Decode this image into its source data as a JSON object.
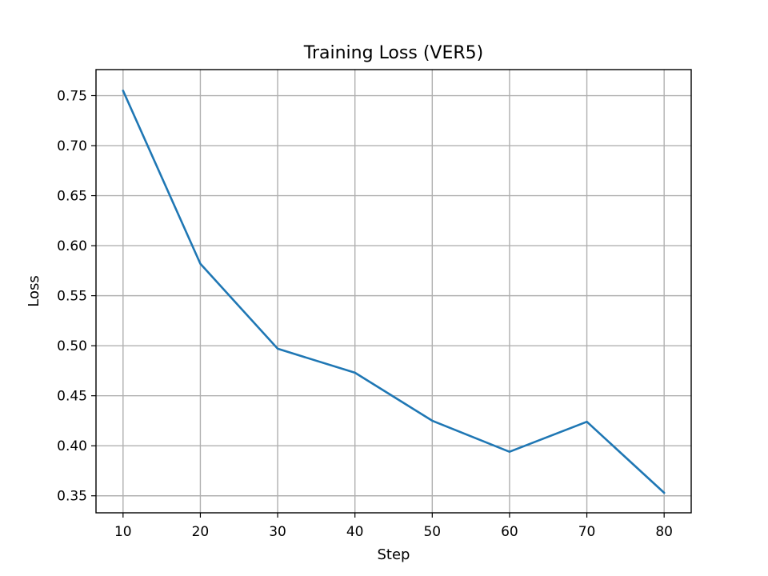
{
  "chart_data": {
    "type": "line",
    "title": "Training Loss (VER5)",
    "xlabel": "Step",
    "ylabel": "Loss",
    "x": [
      10,
      20,
      30,
      40,
      50,
      60,
      70,
      80
    ],
    "series": [
      {
        "values": [
          0.755,
          0.582,
          0.497,
          0.473,
          0.425,
          0.394,
          0.424,
          0.353
        ],
        "color": "#1f77b4"
      }
    ],
    "x_ticks": [
      10,
      20,
      30,
      40,
      50,
      60,
      70,
      80
    ],
    "y_ticks": [
      0.35,
      0.4,
      0.45,
      0.5,
      0.55,
      0.6,
      0.65,
      0.7,
      0.75
    ],
    "y_tick_labels": [
      "0.35",
      "0.40",
      "0.45",
      "0.50",
      "0.55",
      "0.60",
      "0.65",
      "0.70",
      "0.75"
    ],
    "xlim": [
      6.5,
      83.5
    ],
    "ylim": [
      0.333,
      0.776
    ],
    "grid": true,
    "legend": "none"
  }
}
